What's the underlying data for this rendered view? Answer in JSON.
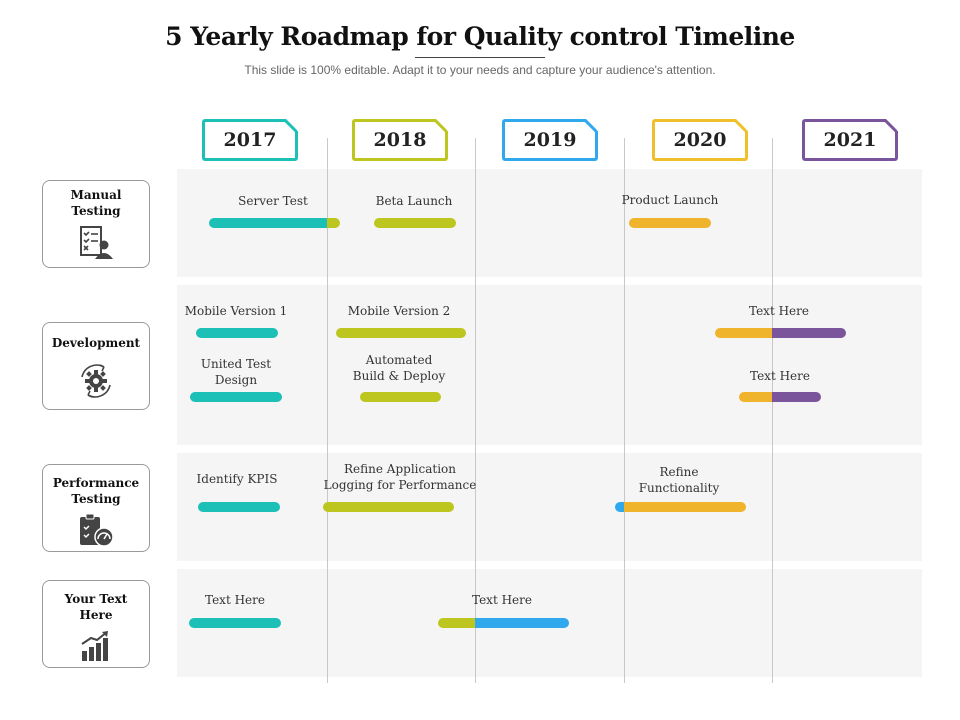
{
  "title": "5 Yearly Roadmap for Quality control Timeline",
  "subtitle": "This slide is 100% editable. Adapt it to your needs and capture your audience's attention.",
  "colors": {
    "teal": "#1cc0b6",
    "lime": "#bcc61e",
    "blue": "#2fa8ee",
    "gold": "#f0b32c",
    "purple": "#7b559b"
  },
  "years": [
    {
      "label": "2017",
      "color": "#1cc0b6"
    },
    {
      "label": "2018",
      "color": "#bcc61e"
    },
    {
      "label": "2019",
      "color": "#2fa8ee"
    },
    {
      "label": "2020",
      "color": "#f0c02c"
    },
    {
      "label": "2021",
      "color": "#7b559b"
    }
  ],
  "categories": [
    {
      "label": "Manual\nTesting",
      "icon": "checklist-person-icon"
    },
    {
      "label": "Development",
      "icon": "gear-cycle-icon"
    },
    {
      "label": "Performance\nTesting",
      "icon": "clipboard-gauge-icon"
    },
    {
      "label": "Your Text\nHere",
      "icon": "growth-chart-icon"
    }
  ],
  "tasks": {
    "server_test": "Server Test",
    "beta_launch": "Beta Launch",
    "product_launch": "Product Launch",
    "mobile_v1": "Mobile Version 1",
    "mobile_v2": "Mobile Version 2",
    "text_here_dev1": "Text Here",
    "united_test": "United Test\nDesign",
    "automated_build": "Automated\nBuild & Deploy",
    "text_here_dev2": "Text Here",
    "identify_kpis": "Identify KPIS",
    "refine_logging": "Refine Application\nLogging for Performance",
    "refine_functionality": "Refine\nFunctionality",
    "text_here_other1": "Text Here",
    "text_here_other2": "Text Here"
  }
}
